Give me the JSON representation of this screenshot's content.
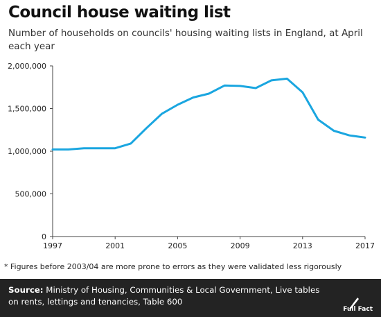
{
  "title": "Council house waiting list",
  "subtitle": "Number of households on councils' housing waiting lists in England, at April each year",
  "footnote": "* Figures before 2003/04 are more prone to errors as they were validated less rigorously",
  "source": {
    "label": "Source:",
    "text": "Ministry of Housing, Communities & Local Government, Live tables on rents, lettings and tenancies, Table 600"
  },
  "logo_text": "Full Fact",
  "colors": {
    "line": "#1aa6e0",
    "axis": "#444444",
    "footer": "#232323"
  },
  "chart_data": {
    "type": "line",
    "x": [
      1997,
      1998,
      1999,
      2000,
      2001,
      2002,
      2003,
      2004,
      2005,
      2006,
      2007,
      2008,
      2009,
      2010,
      2011,
      2012,
      2013,
      2014,
      2015,
      2016,
      2017
    ],
    "series": [
      {
        "values": [
          1020000,
          1020000,
          1035000,
          1035000,
          1035000,
          1090000,
          1270000,
          1440000,
          1545000,
          1630000,
          1675000,
          1770000,
          1765000,
          1740000,
          1830000,
          1850000,
          1690000,
          1370000,
          1240000,
          1185000,
          1160000
        ]
      }
    ],
    "xlim": [
      1997,
      2017
    ],
    "ylim": [
      0,
      2000000
    ],
    "xticks": [
      "1997",
      "2001",
      "2005",
      "2009",
      "2013",
      "2017"
    ],
    "yticks": [
      "0",
      "500,000",
      "1,000,000",
      "1,500,000",
      "2,000,000"
    ],
    "grid": false,
    "legend": "none"
  }
}
